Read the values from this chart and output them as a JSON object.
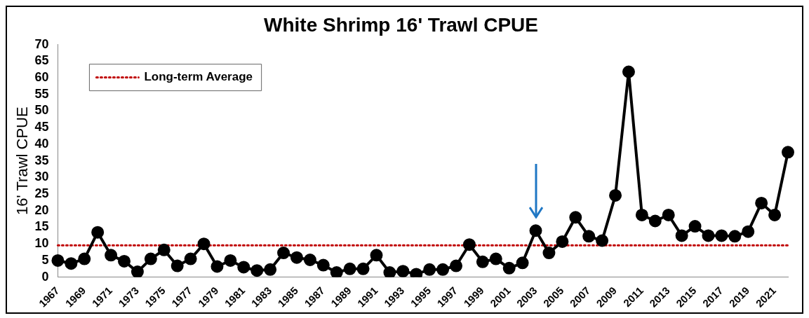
{
  "chart_data": {
    "type": "line",
    "title": "White Shrimp 16' Trawl CPUE",
    "ylabel": "16' Trawl CPUE",
    "categories": [
      "1967",
      null,
      "1969",
      null,
      "1971",
      null,
      "1973",
      null,
      "1975",
      null,
      "1977",
      null,
      "1979",
      null,
      "1981",
      null,
      "1983",
      null,
      "1985",
      null,
      "1987",
      null,
      "1989",
      null,
      "1991",
      null,
      "1993",
      null,
      "1995",
      null,
      "1997",
      null,
      "1999",
      null,
      "2001",
      null,
      "2003",
      null,
      "2005",
      null,
      "2007",
      null,
      "2009",
      null,
      "2011",
      null,
      "2013",
      null,
      "2015",
      null,
      "2017",
      null,
      "2019",
      null,
      "2021",
      null
    ],
    "series": [
      {
        "color": "#000000",
        "values": [
          5.0,
          4.1,
          5.5,
          13.5,
          6.6,
          4.8,
          1.6,
          5.5,
          8.2,
          3.4,
          5.5,
          10,
          3.2,
          5,
          3,
          2,
          2.3,
          7.3,
          5.9,
          5.2,
          3.6,
          1.4,
          2.5,
          2.5,
          6.6,
          1.4,
          1.8,
          0.9,
          2.3,
          2.3,
          3.4,
          9.8,
          4.6,
          5.5,
          2.7,
          4.3,
          14,
          7.3,
          10.7,
          18,
          12.3,
          11,
          24.6,
          61.8,
          18.7,
          16.9,
          18.7,
          12.5,
          15.3,
          12.5,
          12.5,
          12.3,
          13.7,
          22.3,
          18.7,
          37.6
        ]
      }
    ],
    "ylim": [
      0,
      70
    ],
    "yticks": [
      0,
      5,
      10,
      15,
      20,
      25,
      30,
      35,
      40,
      45,
      50,
      55,
      60,
      65,
      70
    ],
    "ref_lines": [
      {
        "axis": "y",
        "value": 9.6,
        "label": "Long-term Average",
        "color": "#c00000",
        "line_style": "dotted"
      }
    ],
    "marker": "circle",
    "line_style": "solid",
    "grid": false
  }
}
